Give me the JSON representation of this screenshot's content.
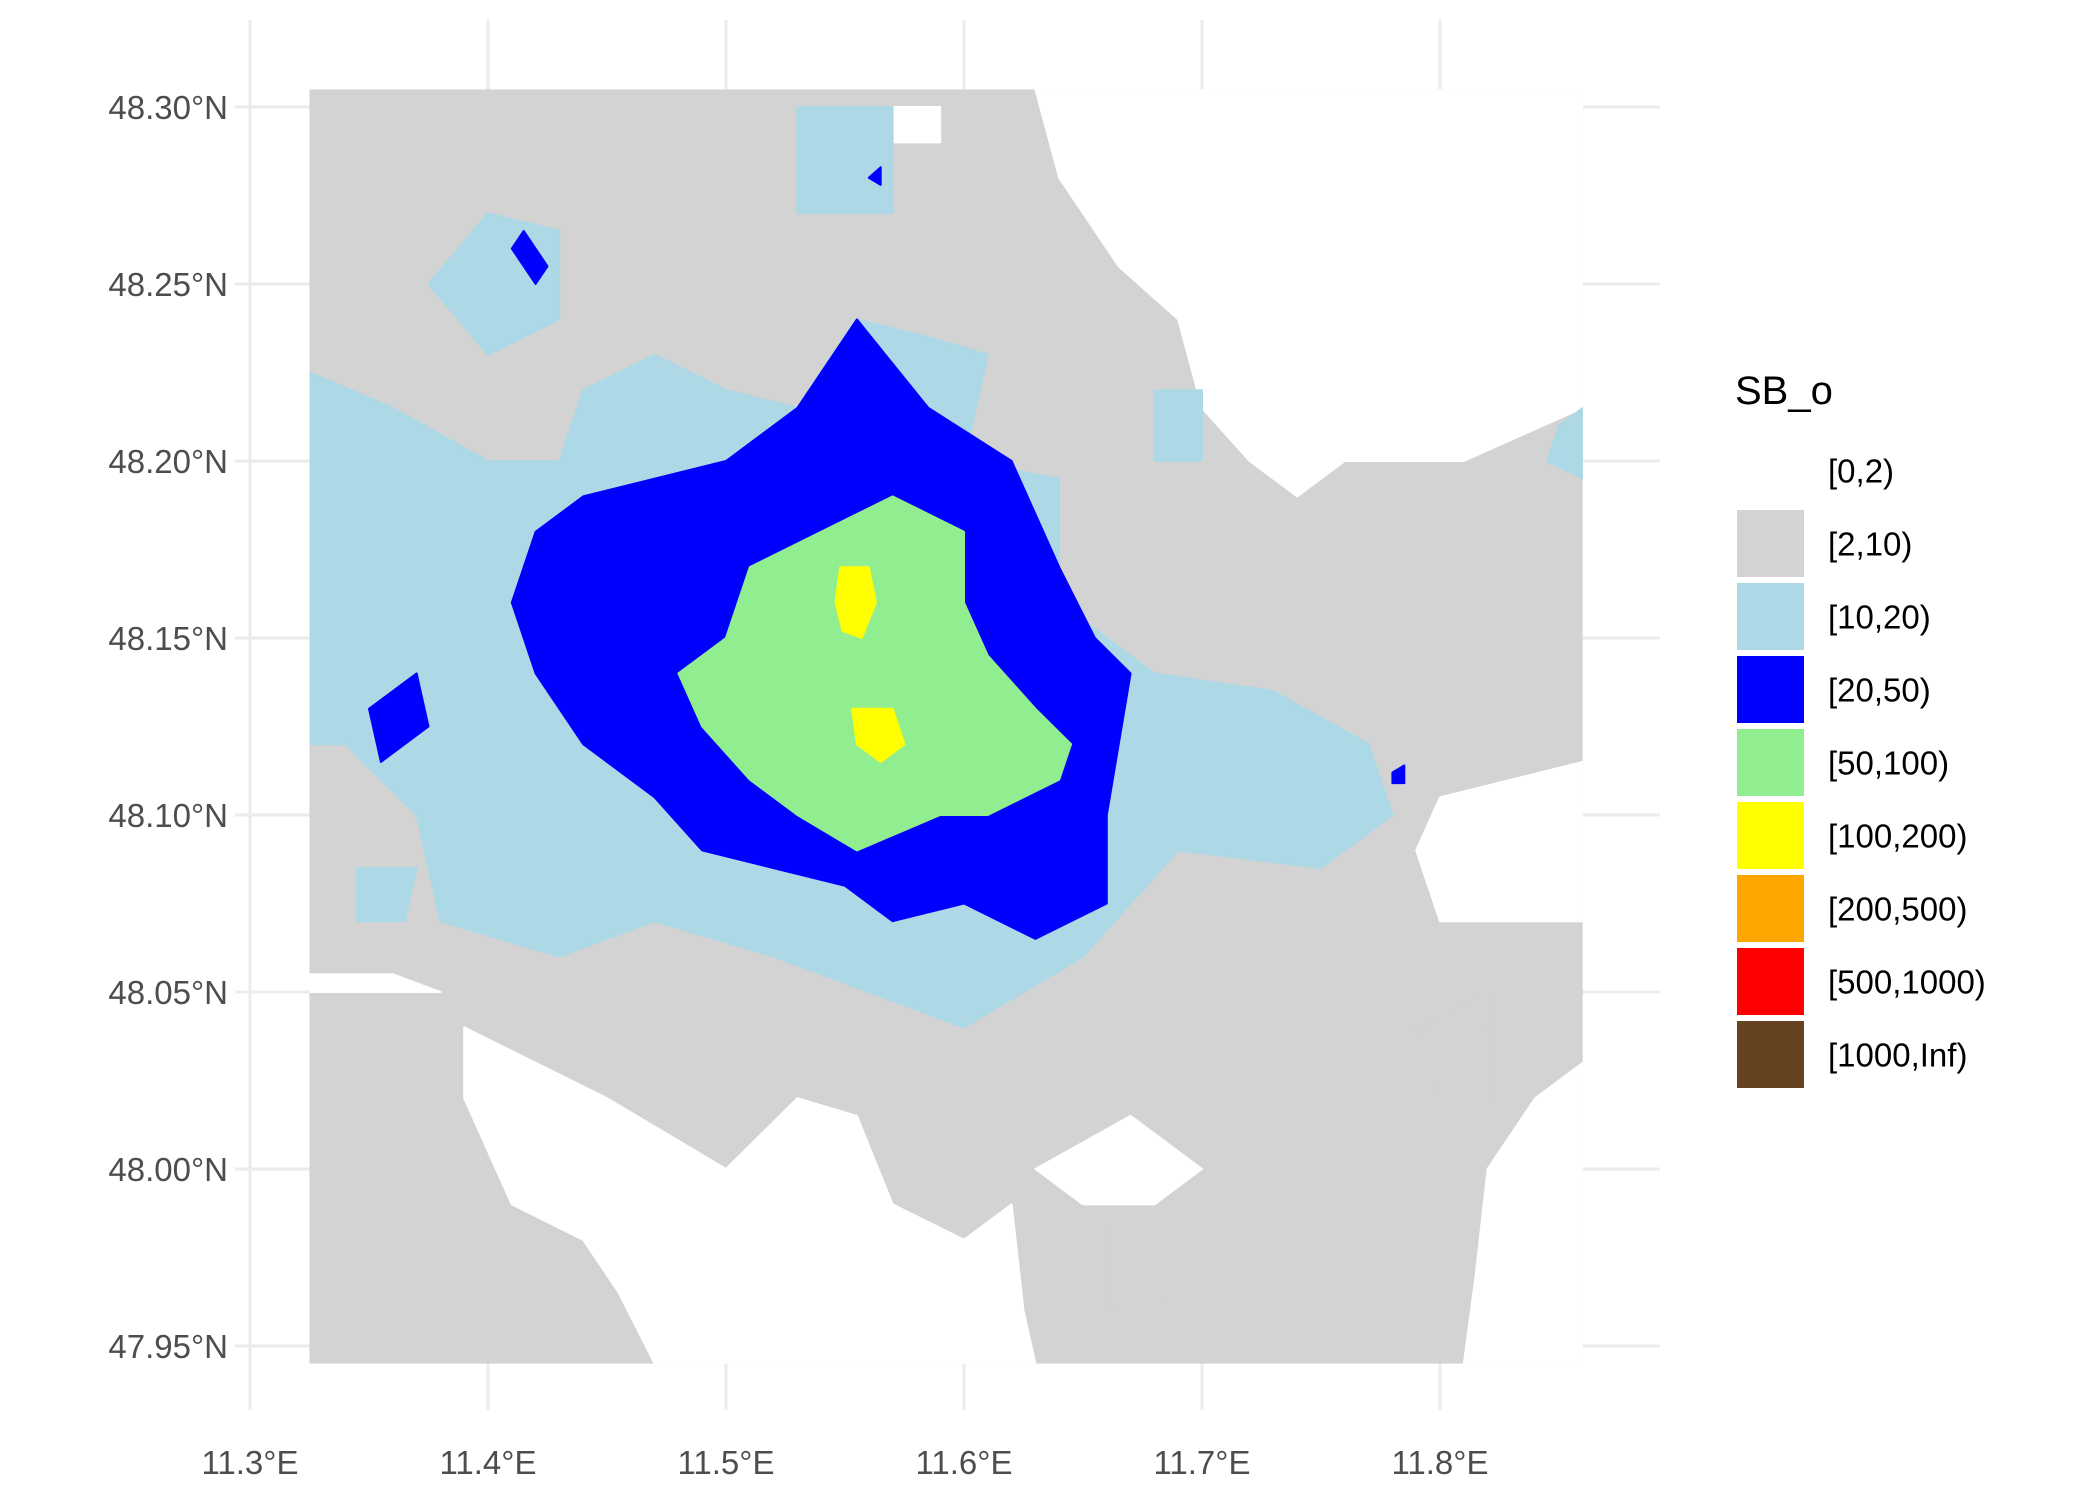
{
  "chart_data": {
    "type": "heatmap",
    "title": "",
    "xlabel": "",
    "ylabel": "",
    "xlim": [
      11.275,
      11.865
    ],
    "ylim": [
      47.93,
      48.31
    ],
    "x_ticks": [
      11.3,
      11.4,
      11.5,
      11.6,
      11.7,
      11.8
    ],
    "x_tick_labels": [
      "11.3°E",
      "11.4°E",
      "11.5°E",
      "11.6°E",
      "11.7°E",
      "11.8°E"
    ],
    "y_ticks": [
      48.3,
      48.25,
      48.2,
      48.15,
      48.1,
      48.05,
      48.0,
      47.95
    ],
    "y_tick_labels": [
      "48.30°N",
      "48.25°N",
      "48.20°N",
      "48.15°N",
      "48.10°N",
      "48.05°N",
      "48.00°N",
      "47.95°N"
    ],
    "raster_extent": {
      "x": [
        11.325,
        11.86
      ],
      "y": [
        47.945,
        48.305
      ]
    },
    "grid": true,
    "legend": {
      "title": "SB_o",
      "position": "right",
      "items": [
        {
          "label": "[0,2)",
          "color": "#ffffff"
        },
        {
          "label": "[2,10)",
          "color": "#d3d3d3"
        },
        {
          "label": "[10,20)",
          "color": "#add8e6"
        },
        {
          "label": "[20,50)",
          "color": "#0000ff"
        },
        {
          "label": "[50,100)",
          "color": "#90ee90"
        },
        {
          "label": "[100,200)",
          "color": "#ffff00"
        },
        {
          "label": "[200,500)",
          "color": "#ffa500"
        },
        {
          "label": "[500,1000)",
          "color": "#ff0000"
        },
        {
          "label": "[1000,Inf)",
          "color": "#654321"
        }
      ]
    },
    "regions": [
      {
        "class": "[0,2)",
        "polygons": [
          [
            [
              11.63,
              48.305
            ],
            [
              11.86,
              48.305
            ],
            [
              11.86,
              48.215
            ],
            [
              11.81,
              48.2
            ],
            [
              11.76,
              48.2
            ],
            [
              11.74,
              48.19
            ],
            [
              11.72,
              48.2
            ],
            [
              11.7,
              48.215
            ],
            [
              11.69,
              48.24
            ],
            [
              11.665,
              48.255
            ],
            [
              11.64,
              48.28
            ]
          ],
          [
            [
              11.86,
              48.115
            ],
            [
              11.86,
              48.07
            ],
            [
              11.8,
              48.07
            ],
            [
              11.79,
              48.09
            ],
            [
              11.8,
              48.105
            ],
            [
              11.83,
              48.11
            ]
          ],
          [
            [
              11.325,
              48.05
            ],
            [
              11.38,
              48.05
            ],
            [
              11.36,
              48.055
            ],
            [
              11.325,
              48.055
            ]
          ],
          [
            [
              11.39,
              48.04
            ],
            [
              11.45,
              48.02
            ],
            [
              11.5,
              48.0
            ],
            [
              11.53,
              48.02
            ],
            [
              11.555,
              48.015
            ],
            [
              11.57,
              47.99
            ],
            [
              11.6,
              47.98
            ],
            [
              11.62,
              47.99
            ],
            [
              11.625,
              47.96
            ],
            [
              11.63,
              47.945
            ],
            [
              11.47,
              47.945
            ],
            [
              11.455,
              47.965
            ],
            [
              11.44,
              47.98
            ],
            [
              11.41,
              47.99
            ],
            [
              11.4,
              48.005
            ],
            [
              11.39,
              48.02
            ]
          ],
          [
            [
              11.63,
              48.0
            ],
            [
              11.67,
              48.015
            ],
            [
              11.7,
              48.0
            ],
            [
              11.68,
              47.99
            ],
            [
              11.65,
              47.99
            ]
          ],
          [
            [
              11.81,
              47.945
            ],
            [
              11.86,
              47.945
            ],
            [
              11.86,
              48.03
            ],
            [
              11.84,
              48.02
            ],
            [
              11.82,
              48.0
            ],
            [
              11.815,
              47.97
            ]
          ],
          [
            [
              11.55,
              48.29
            ],
            [
              11.59,
              48.29
            ],
            [
              11.59,
              48.3
            ],
            [
              11.55,
              48.3
            ]
          ]
        ]
      },
      {
        "class": "[2,10)",
        "polygons": [
          [
            [
              11.66,
              47.96
            ],
            [
              11.7,
              47.965
            ],
            [
              11.7,
              47.985
            ],
            [
              11.66,
              47.985
            ]
          ],
          [
            [
              11.79,
              48.04
            ],
            [
              11.82,
              48.05
            ],
            [
              11.82,
              48.02
            ],
            [
              11.8,
              48.02
            ]
          ]
        ]
      },
      {
        "class": "[10,20)",
        "polygons": [
          [
            [
              11.325,
              48.225
            ],
            [
              11.36,
              48.215
            ],
            [
              11.4,
              48.2
            ],
            [
              11.43,
              48.2
            ],
            [
              11.44,
              48.22
            ],
            [
              11.47,
              48.23
            ],
            [
              11.5,
              48.22
            ],
            [
              11.53,
              48.215
            ],
            [
              11.555,
              48.24
            ],
            [
              11.585,
              48.235
            ],
            [
              11.61,
              48.23
            ],
            [
              11.6,
              48.2
            ],
            [
              11.64,
              48.195
            ],
            [
              11.64,
              48.16
            ],
            [
              11.68,
              48.14
            ],
            [
              11.73,
              48.135
            ],
            [
              11.77,
              48.12
            ],
            [
              11.78,
              48.1
            ],
            [
              11.75,
              48.085
            ],
            [
              11.69,
              48.09
            ],
            [
              11.65,
              48.06
            ],
            [
              11.6,
              48.04
            ],
            [
              11.56,
              48.05
            ],
            [
              11.52,
              48.06
            ],
            [
              11.47,
              48.07
            ],
            [
              11.43,
              48.06
            ],
            [
              11.38,
              48.07
            ],
            [
              11.37,
              48.1
            ],
            [
              11.34,
              48.12
            ],
            [
              11.325,
              48.12
            ]
          ],
          [
            [
              11.4,
              48.27
            ],
            [
              11.43,
              48.265
            ],
            [
              11.43,
              48.24
            ],
            [
              11.4,
              48.23
            ],
            [
              11.375,
              48.25
            ]
          ],
          [
            [
              11.53,
              48.3
            ],
            [
              11.57,
              48.3
            ],
            [
              11.57,
              48.27
            ],
            [
              11.53,
              48.27
            ]
          ],
          [
            [
              11.68,
              48.22
            ],
            [
              11.7,
              48.22
            ],
            [
              11.7,
              48.2
            ],
            [
              11.68,
              48.2
            ]
          ],
          [
            [
              11.845,
              48.2
            ],
            [
              11.86,
              48.195
            ],
            [
              11.86,
              48.215
            ],
            [
              11.85,
              48.21
            ]
          ],
          [
            [
              11.345,
              48.085
            ],
            [
              11.37,
              48.085
            ],
            [
              11.365,
              48.07
            ],
            [
              11.345,
              48.07
            ]
          ]
        ]
      },
      {
        "class": "[20,50)",
        "polygons": [
          [
            [
              11.42,
              48.18
            ],
            [
              11.44,
              48.19
            ],
            [
              11.5,
              48.2
            ],
            [
              11.53,
              48.215
            ],
            [
              11.555,
              48.24
            ],
            [
              11.585,
              48.215
            ],
            [
              11.62,
              48.2
            ],
            [
              11.64,
              48.17
            ],
            [
              11.655,
              48.15
            ],
            [
              11.67,
              48.14
            ],
            [
              11.665,
              48.12
            ],
            [
              11.66,
              48.1
            ],
            [
              11.66,
              48.075
            ],
            [
              11.63,
              48.065
            ],
            [
              11.6,
              48.075
            ],
            [
              11.57,
              48.07
            ],
            [
              11.55,
              48.08
            ],
            [
              11.52,
              48.085
            ],
            [
              11.49,
              48.09
            ],
            [
              11.47,
              48.105
            ],
            [
              11.44,
              48.12
            ],
            [
              11.42,
              48.14
            ],
            [
              11.41,
              48.16
            ]
          ],
          [
            [
              11.35,
              48.13
            ],
            [
              11.37,
              48.14
            ],
            [
              11.375,
              48.125
            ],
            [
              11.355,
              48.115
            ]
          ],
          [
            [
              11.415,
              48.265
            ],
            [
              11.425,
              48.255
            ],
            [
              11.42,
              48.25
            ],
            [
              11.41,
              48.26
            ]
          ],
          [
            [
              11.56,
              48.28
            ],
            [
              11.565,
              48.283
            ],
            [
              11.565,
              48.278
            ]
          ],
          [
            [
              11.78,
              48.112
            ],
            [
              11.785,
              48.114
            ],
            [
              11.785,
              48.109
            ],
            [
              11.78,
              48.109
            ]
          ]
        ]
      },
      {
        "class": "[50,100)",
        "polygons": [
          [
            [
              11.48,
              48.14
            ],
            [
              11.5,
              48.15
            ],
            [
              11.51,
              48.17
            ],
            [
              11.54,
              48.18
            ],
            [
              11.57,
              48.19
            ],
            [
              11.6,
              48.18
            ],
            [
              11.6,
              48.16
            ],
            [
              11.61,
              48.145
            ],
            [
              11.63,
              48.13
            ],
            [
              11.645,
              48.12
            ],
            [
              11.64,
              48.11
            ],
            [
              11.61,
              48.1
            ],
            [
              11.59,
              48.1
            ],
            [
              11.555,
              48.09
            ],
            [
              11.53,
              48.1
            ],
            [
              11.51,
              48.11
            ],
            [
              11.49,
              48.125
            ]
          ]
        ]
      },
      {
        "class": "[100,200)",
        "polygons": [
          [
            [
              11.548,
              48.17
            ],
            [
              11.56,
              48.17
            ],
            [
              11.563,
              48.16
            ],
            [
              11.557,
              48.15
            ],
            [
              11.549,
              48.152
            ],
            [
              11.546,
              48.16
            ]
          ],
          [
            [
              11.553,
              48.13
            ],
            [
              11.57,
              48.13
            ],
            [
              11.575,
              48.12
            ],
            [
              11.565,
              48.115
            ],
            [
              11.555,
              48.12
            ]
          ]
        ]
      }
    ]
  }
}
